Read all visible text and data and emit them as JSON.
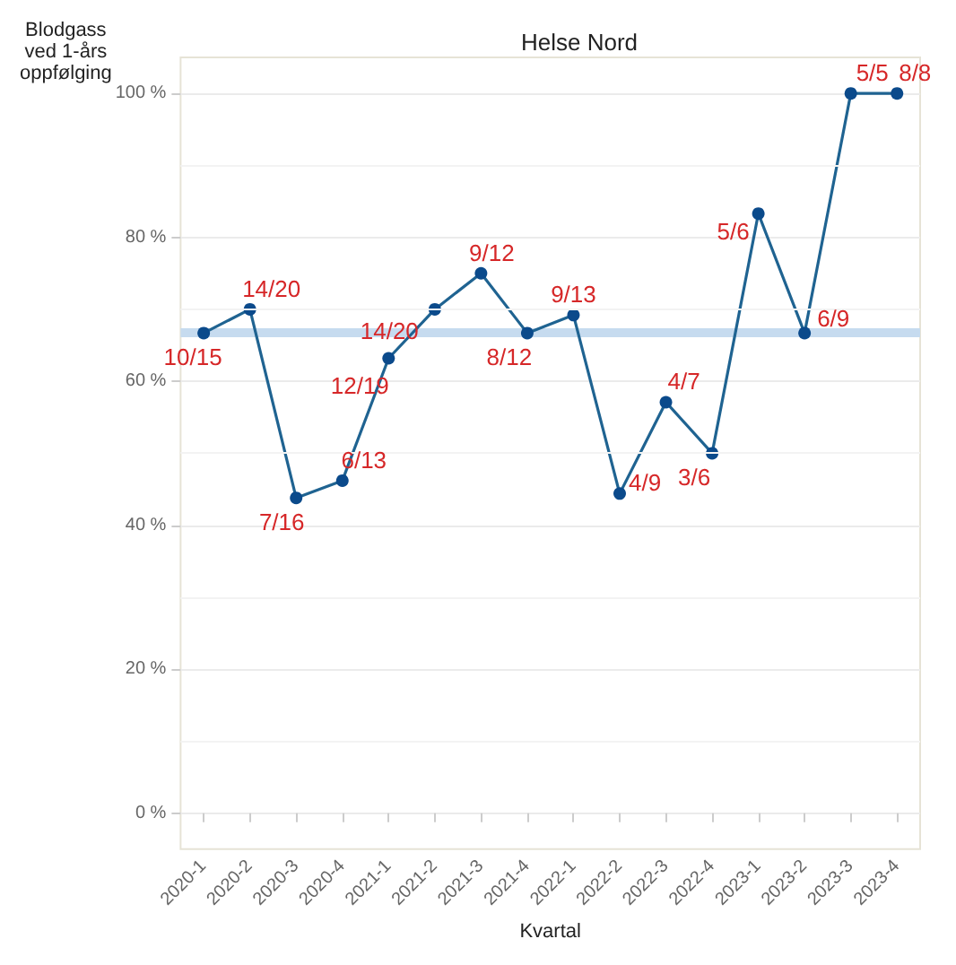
{
  "chart_data": {
    "type": "line",
    "title": "Helse Nord",
    "xlabel": "Kvartal",
    "ylabel": "Blodgass\nved 1-års\noppfølging",
    "categories": [
      "2020-1",
      "2020-2",
      "2020-3",
      "2020-4",
      "2021-1",
      "2021-2",
      "2021-3",
      "2021-4",
      "2022-1",
      "2022-2",
      "2022-3",
      "2022-4",
      "2023-1",
      "2023-2",
      "2023-3",
      "2023-4"
    ],
    "series": [
      {
        "color": "#1f6391",
        "values": [
          66.7,
          70,
          43.8,
          46.2,
          63.2,
          70,
          75,
          66.7,
          69.2,
          44.4,
          57.1,
          50,
          83.3,
          66.7,
          100,
          100
        ]
      }
    ],
    "annotations": [
      {
        "text": "10/15",
        "x": "2020-1",
        "y": 66.7
      },
      {
        "text": "14/20",
        "x": "2020-2",
        "y": 70
      },
      {
        "text": "7/16",
        "x": "2020-3",
        "y": 43.8
      },
      {
        "text": "6/13",
        "x": "2020-4",
        "y": 46.2
      },
      {
        "text": "12/19",
        "x": "2021-1",
        "y": 63.2
      },
      {
        "text": "14/20",
        "x": "2021-2",
        "y": 70
      },
      {
        "text": "9/12",
        "x": "2021-3",
        "y": 75
      },
      {
        "text": "8/12",
        "x": "2021-4",
        "y": 66.7
      },
      {
        "text": "9/13",
        "x": "2022-1",
        "y": 69.2
      },
      {
        "text": "4/9",
        "x": "2022-2",
        "y": 44.4
      },
      {
        "text": "4/7",
        "x": "2022-3",
        "y": 57.1
      },
      {
        "text": "3/6",
        "x": "2022-4",
        "y": 50
      },
      {
        "text": "5/6",
        "x": "2023-1",
        "y": 83.3
      },
      {
        "text": "6/9",
        "x": "2023-2",
        "y": 66.7
      },
      {
        "text": "5/5",
        "x": "2023-3",
        "y": 100
      },
      {
        "text": "8/8",
        "x": "2023-4",
        "y": 100
      }
    ],
    "ylim": [
      -5,
      105
    ],
    "yticks": [
      {
        "value": 0,
        "label": "0 %"
      },
      {
        "value": 10,
        "label": null
      },
      {
        "value": 20,
        "label": "20 %"
      },
      {
        "value": 30,
        "label": null
      },
      {
        "value": 40,
        "label": "40 %"
      },
      {
        "value": 50,
        "label": null
      },
      {
        "value": 60,
        "label": "60 %"
      },
      {
        "value": 70,
        "label": null
      },
      {
        "value": 80,
        "label": "80 %"
      },
      {
        "value": 90,
        "label": null
      },
      {
        "value": 100,
        "label": "100 %"
      }
    ],
    "ref_lines": [
      {
        "axis": "y",
        "value": 66.7,
        "color": "#c6dbef"
      }
    ],
    "grid": "y",
    "marker": "circle",
    "line_style": "solid"
  }
}
